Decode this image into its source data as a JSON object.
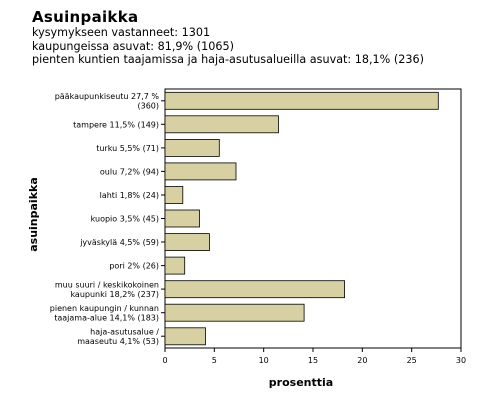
{
  "header": {
    "title": "Asuinpaikka",
    "lines": [
      "kysymykseen vastanneet: 1301",
      "kaupungeissa asuvat: 81,9% (1065)",
      "pienten kuntien taajamissa ja haja-asutusalueilla asuvat: 18,1% (236)"
    ]
  },
  "chart_data": {
    "type": "bar",
    "orientation": "horizontal",
    "xlabel": "prosenttia",
    "ylabel": "asuinpaikka",
    "xlim": [
      0,
      30
    ],
    "xticks": [
      0,
      5,
      10,
      15,
      20,
      25,
      30
    ],
    "bar_color": "#d6d0a3",
    "categories": [
      [
        "pääkaupunkiseutu 27,7 %",
        "(360)"
      ],
      [
        "tampere 11,5% (149)"
      ],
      [
        "turku 5,5% (71)"
      ],
      [
        "oulu 7,2% (94)"
      ],
      [
        "lahti 1,8% (24)"
      ],
      [
        "kuopio 3,5% (45)"
      ],
      [
        "jyväskylä 4,5% (59)"
      ],
      [
        "pori 2% (26)"
      ],
      [
        "muu suuri / keskikokoinen",
        "kaupunki 18,2% (237)"
      ],
      [
        "pienen kaupungin / kunnan",
        "taajama-alue 14,1% (183)"
      ],
      [
        "haja-asutusalue /",
        "maaseutu 4,1% (53)"
      ]
    ],
    "values": [
      27.7,
      11.5,
      5.5,
      7.2,
      1.8,
      3.5,
      4.5,
      2.0,
      18.2,
      14.1,
      4.1
    ]
  }
}
